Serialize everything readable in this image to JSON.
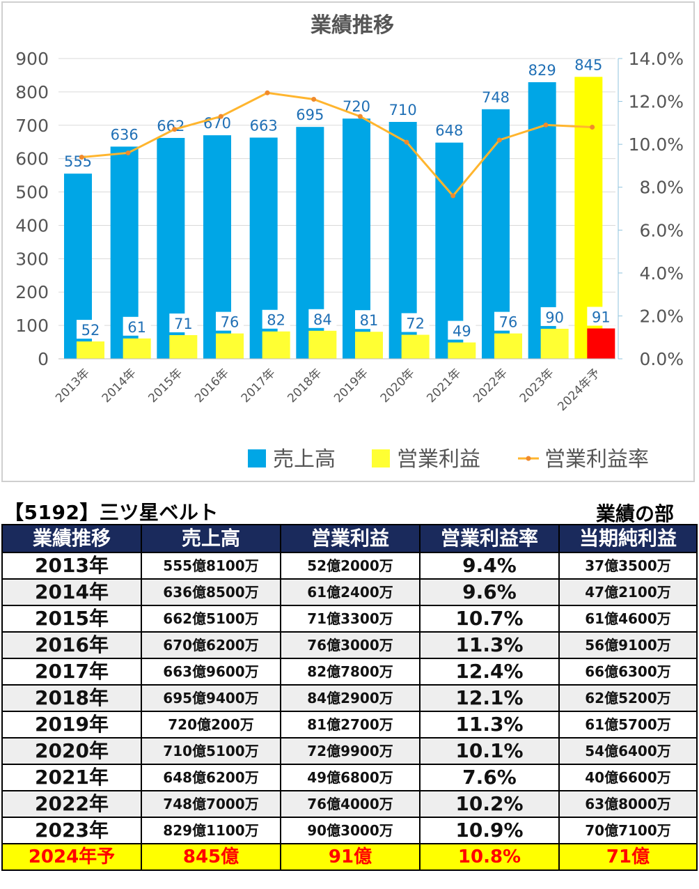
{
  "chart_data": {
    "type": "bar",
    "title": "業績推移",
    "categories": [
      "2013年",
      "2014年",
      "2015年",
      "2016年",
      "2017年",
      "2018年",
      "2019年",
      "2020年",
      "2021年",
      "2022年",
      "2023年",
      "2024年予"
    ],
    "series": [
      {
        "name": "売上高",
        "type": "bar",
        "axis": "left",
        "color": "#00a6e6",
        "values": [
          555,
          636,
          662,
          670,
          663,
          695,
          720,
          710,
          648,
          748,
          829,
          845
        ]
      },
      {
        "name": "営業利益",
        "type": "bar",
        "axis": "left",
        "color": "#ffff33",
        "values": [
          52,
          61,
          71,
          76,
          82,
          84,
          81,
          72,
          49,
          76,
          90,
          91
        ]
      },
      {
        "name": "営業利益率",
        "type": "line",
        "axis": "right",
        "color": "#ffb52e",
        "values": [
          9.4,
          9.6,
          10.7,
          11.3,
          12.4,
          12.1,
          11.3,
          10.1,
          7.6,
          10.2,
          10.9,
          10.8
        ]
      }
    ],
    "forecast_colors": {
      "sales": "#ffff00",
      "profit": "#ff0000"
    },
    "ylim": [
      0,
      900
    ],
    "yticks": [
      "0",
      "100",
      "200",
      "300",
      "400",
      "500",
      "600",
      "700",
      "800",
      "900"
    ],
    "y2lim": [
      0,
      14
    ],
    "y2ticks": [
      "0.0%",
      "2.0%",
      "4.0%",
      "6.0%",
      "8.0%",
      "10.0%",
      "12.0%",
      "14.0%"
    ],
    "legend_position": "bottom-right",
    "grid": true
  },
  "header": {
    "company": "【5192】三ツ星ベルト",
    "section": "業績の部"
  },
  "table": {
    "columns": [
      "業績推移",
      "売上高",
      "営業利益",
      "営業利益率",
      "当期純利益"
    ],
    "rows": [
      [
        "2013年",
        "555億8100万",
        "52億2000万",
        "9.4%",
        "37億3500万"
      ],
      [
        "2014年",
        "636億8500万",
        "61億2400万",
        "9.6%",
        "47億2100万"
      ],
      [
        "2015年",
        "662億5100万",
        "71億3300万",
        "10.7%",
        "61億4600万"
      ],
      [
        "2016年",
        "670億6200万",
        "76億3000万",
        "11.3%",
        "56億9100万"
      ],
      [
        "2017年",
        "663億9600万",
        "82億7800万",
        "12.4%",
        "66億6300万"
      ],
      [
        "2018年",
        "695億9400万",
        "84億2900万",
        "12.1%",
        "62億5200万"
      ],
      [
        "2019年",
        "720億200万",
        "81億2700万",
        "11.3%",
        "61億5700万"
      ],
      [
        "2020年",
        "710億5100万",
        "72億9900万",
        "10.1%",
        "54億6400万"
      ],
      [
        "2021年",
        "648億6200万",
        "49億6800万",
        "7.6%",
        "40億6600万"
      ],
      [
        "2022年",
        "748億7000万",
        "76億4000万",
        "10.2%",
        "63億8000万"
      ],
      [
        "2023年",
        "829億1100万",
        "90億3000万",
        "10.9%",
        "70億7100万"
      ]
    ],
    "forecast_row": [
      "2024年予",
      "845億",
      "91億",
      "10.8%",
      "71億"
    ]
  }
}
